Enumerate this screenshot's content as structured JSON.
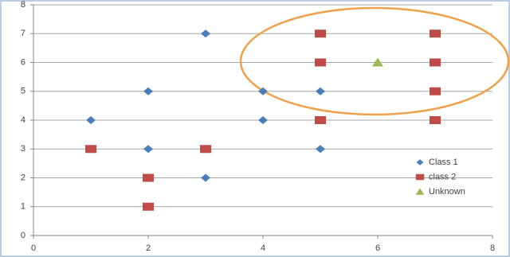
{
  "chart_data": {
    "type": "scatter",
    "xlim": [
      0,
      8
    ],
    "xticks": [
      0,
      2,
      4,
      6,
      8
    ],
    "ylim": [
      0,
      8
    ],
    "yticks": [
      0,
      1,
      2,
      3,
      4,
      5,
      6,
      7,
      8
    ],
    "grid": true,
    "legend": "lower right",
    "series": [
      {
        "name": "Class 1",
        "color": "#4a7ebb",
        "marker": "diamond",
        "x": [
          3,
          2,
          4,
          5,
          1,
          4,
          2,
          5,
          3
        ],
        "values": [
          7,
          5,
          5,
          5,
          4,
          4,
          3,
          3,
          2
        ]
      },
      {
        "name": "class 2",
        "color": "#be4b48",
        "marker": "square",
        "x": [
          5,
          7,
          5,
          7,
          7,
          5,
          7,
          1,
          3,
          2,
          2
        ],
        "values": [
          7,
          7,
          6,
          6,
          5,
          4,
          4,
          3,
          3,
          2,
          1
        ]
      },
      {
        "name": "Unknown",
        "color": "#98b954",
        "marker": "triangle",
        "x": [
          6
        ],
        "values": [
          6
        ]
      }
    ]
  }
}
